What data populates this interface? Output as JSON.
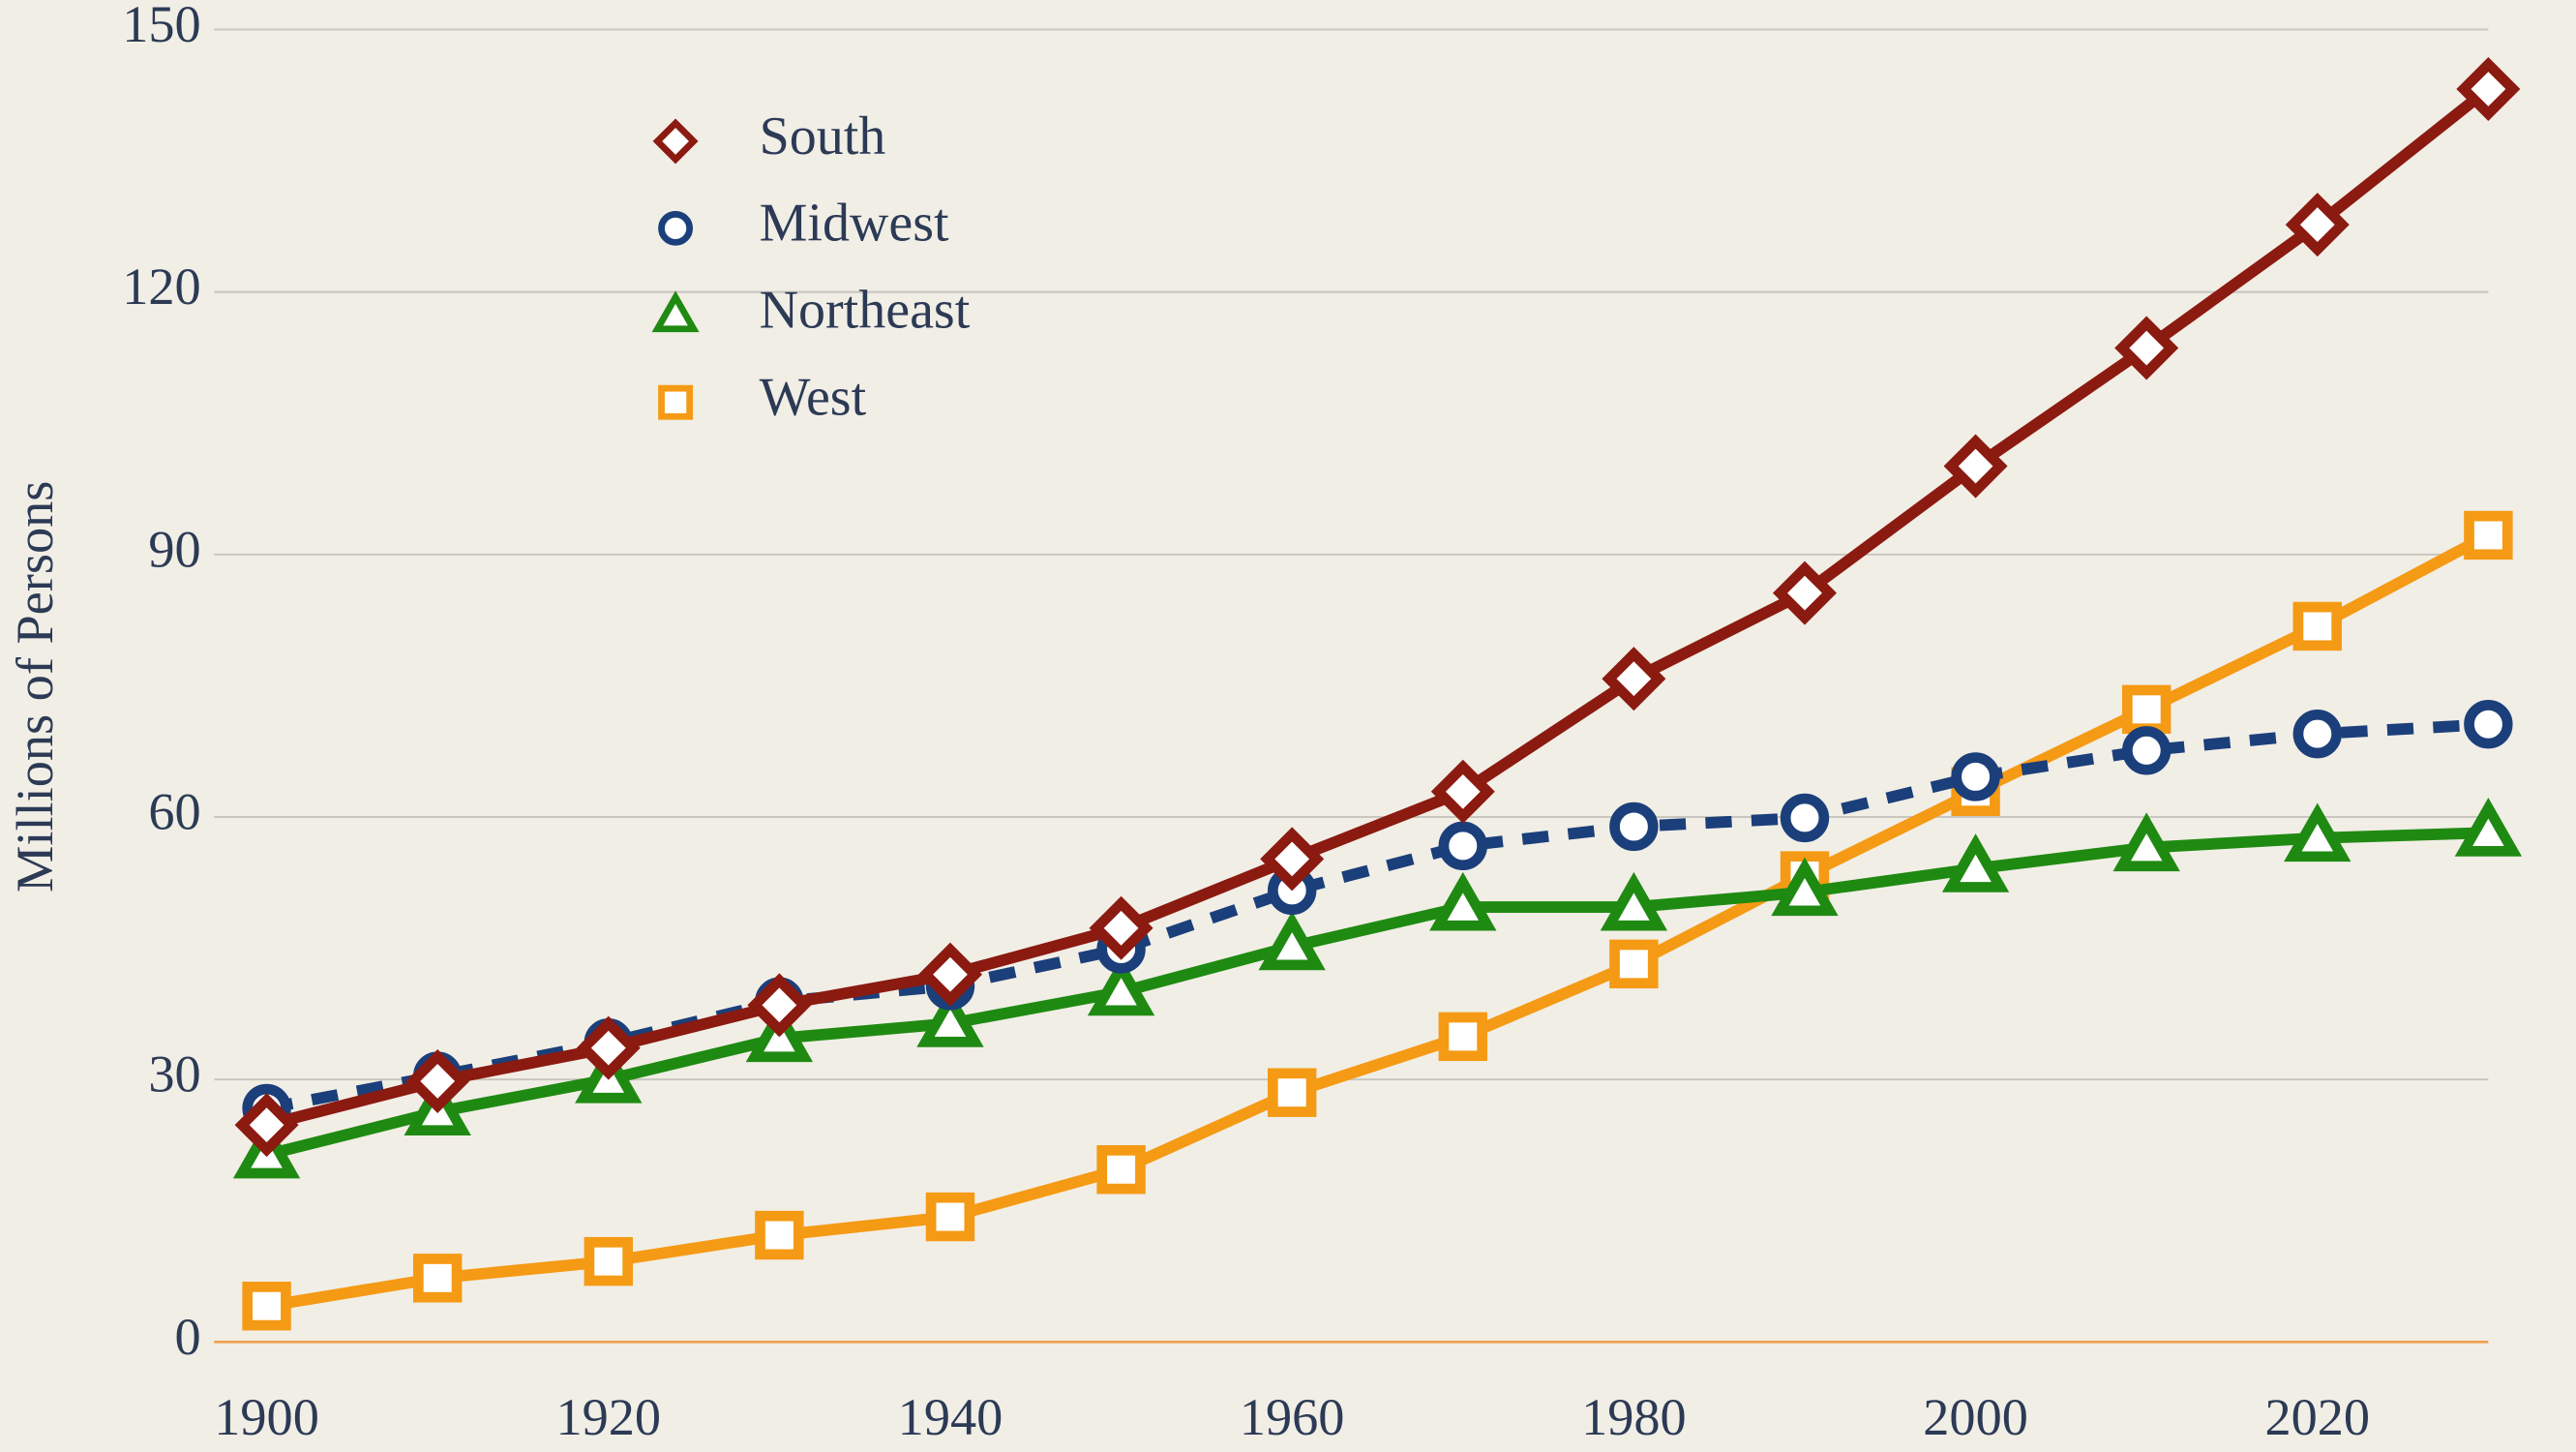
{
  "chart_data": {
    "type": "line",
    "ylabel": "Millions of Persons",
    "x": [
      1900,
      1910,
      1920,
      1930,
      1940,
      1950,
      1960,
      1970,
      1980,
      1990,
      2000,
      2010,
      2020,
      2030
    ],
    "xlim": [
      1900,
      2030
    ],
    "xticks": [
      1900,
      1920,
      1940,
      1960,
      1980,
      2000,
      2020
    ],
    "ylim": [
      0,
      150
    ],
    "yticks": [
      0,
      30,
      60,
      90,
      120,
      150
    ],
    "grid": true,
    "legend": "upper left",
    "series": [
      {
        "name": "South",
        "color": "#8b1a10",
        "marker": "diamond",
        "linestyle": "solid",
        "values": [
          24.8,
          29.8,
          33.6,
          38.5,
          42.0,
          47.3,
          55.2,
          62.9,
          75.8,
          85.6,
          100.1,
          113.6,
          127.7,
          143.2
        ]
      },
      {
        "name": "Midwest",
        "color": "#1b3f7a",
        "marker": "circle",
        "linestyle": "dashed",
        "values": [
          26.7,
          30.4,
          34.2,
          38.9,
          40.7,
          44.9,
          51.6,
          56.7,
          58.9,
          59.9,
          64.6,
          67.6,
          69.5,
          70.6
        ]
      },
      {
        "name": "Northeast",
        "color": "#1f8a12",
        "marker": "triangle",
        "linestyle": "solid",
        "values": [
          21.4,
          26.3,
          30.0,
          34.7,
          36.4,
          40.0,
          45.2,
          49.7,
          49.7,
          51.4,
          54.1,
          56.5,
          57.6,
          58.2
        ]
      },
      {
        "name": "West",
        "color": "#f59a14",
        "marker": "square",
        "linestyle": "solid",
        "values": [
          4.1,
          7.3,
          9.2,
          12.2,
          14.3,
          19.7,
          28.5,
          34.9,
          43.2,
          53.3,
          62.9,
          72.3,
          81.8,
          92.2
        ]
      }
    ]
  }
}
